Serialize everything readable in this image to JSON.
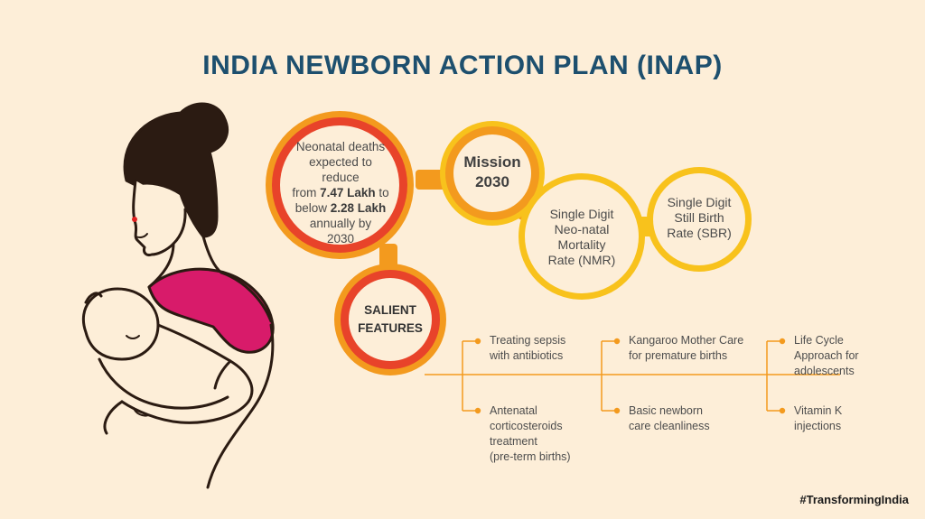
{
  "title": "INDIA NEWBORN ACTION PLAN (INAP)",
  "neonatal": {
    "line1": "Neonatal deaths",
    "line2": "expected to reduce",
    "from_pre": "from ",
    "from_val": "7.47 Lakh",
    "from_post": " to",
    "below_pre": "below ",
    "below_val": "2.28 Lakh",
    "line5": "annually by",
    "line6": "2030"
  },
  "mission": {
    "line1": "Mission",
    "line2": "2030"
  },
  "nmr": {
    "line1": "Single Digit",
    "line2": "Neo-natal",
    "line3": "Mortality",
    "line4": "Rate (NMR)"
  },
  "sbr": {
    "line1": "Single Digit",
    "line2": "Still Birth",
    "line3": "Rate (SBR)"
  },
  "salient": {
    "line1": "SALIENT",
    "line2": "FEATURES"
  },
  "features": [
    {
      "lines": [
        "Treating sepsis",
        "with antibiotics"
      ]
    },
    {
      "lines": [
        "Antenatal",
        "corticosteroids",
        "treatment",
        "(pre-term births)"
      ]
    },
    {
      "lines": [
        "Kangaroo Mother Care",
        "for premature births"
      ]
    },
    {
      "lines": [
        "Basic newborn",
        "care cleanliness"
      ]
    },
    {
      "lines": [
        "Life Cycle",
        "Approach for",
        "adolescents"
      ]
    },
    {
      "lines": [
        "Vitamin K",
        "injections"
      ]
    }
  ],
  "hashtag": "#TransformingIndia",
  "colors": {
    "background": "#fdeed8",
    "title": "#1d4f6e",
    "red_ring": "#e8432a",
    "orange": "#f39a1e",
    "yellow": "#f8c21c",
    "dress": "#d81b6a",
    "bindi": "#e02020"
  },
  "icons": {
    "mother": "mother-with-baby-illustration"
  }
}
